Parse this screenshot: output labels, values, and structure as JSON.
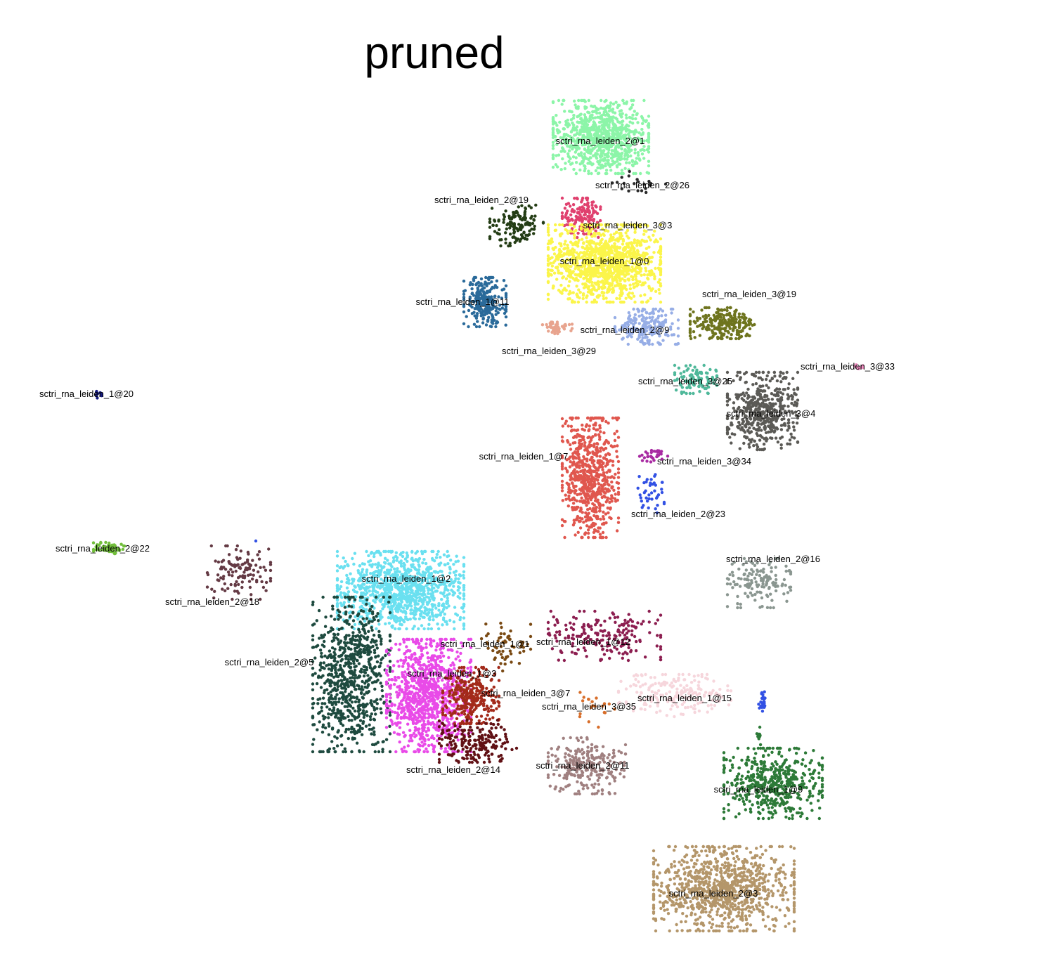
{
  "chart_data": {
    "type": "scatter",
    "title": "pruned",
    "xlabel": "",
    "ylabel": "",
    "grid": false,
    "legend": "none",
    "clusters": [
      {
        "label": "sctri_rna_leiden_2@1",
        "color": "#8cf5a8",
        "center": [
          855,
          195
        ],
        "spread": [
          68,
          52
        ],
        "n": 900
      },
      {
        "label": "sctri_rna_leiden_2@26",
        "color": "#2a2a2a",
        "center": [
          910,
          262
        ],
        "spread": [
          40,
          18
        ],
        "n": 20
      },
      {
        "label": "sctri_rna_leiden_2@19",
        "color": "#243d15",
        "center": [
          735,
          320
        ],
        "spread": [
          38,
          30
        ],
        "n": 140
      },
      {
        "label": "sctri_rna_leiden_3@3",
        "color": "#e0406e",
        "center": [
          830,
          310
        ],
        "spread": [
          30,
          28
        ],
        "n": 150
      },
      {
        "label": "sctri_rna_leiden_1@0",
        "color": "#fbf54a",
        "center": [
          860,
          375
        ],
        "spread": [
          80,
          55
        ],
        "n": 1200
      },
      {
        "label": "sctri_rna_leiden_1@11",
        "color": "#2a6a9a",
        "center": [
          690,
          430
        ],
        "spread": [
          30,
          35
        ],
        "n": 250
      },
      {
        "label": "sctri_rna_leiden_3@29",
        "color": "#e8a48e",
        "center": [
          790,
          465
        ],
        "spread": [
          24,
          10
        ],
        "n": 50
      },
      {
        "label": "sctri_rna_leiden_2@9",
        "color": "#97aee6",
        "center": [
          920,
          465
        ],
        "spread": [
          45,
          25
        ],
        "n": 200
      },
      {
        "label": "sctri_rna_leiden_3@19",
        "color": "#6e741e",
        "center": [
          1030,
          460
        ],
        "spread": [
          48,
          22
        ],
        "n": 250
      },
      {
        "label": "sctri_rna_leiden_3@33",
        "color": "#f48fc4",
        "center": [
          1222,
          522
        ],
        "spread": [
          8,
          4
        ],
        "n": 10
      },
      {
        "label": "sctri_rna_leiden_1@20",
        "color": "#141a80",
        "center": [
          140,
          560
        ],
        "spread": [
          10,
          7
        ],
        "n": 10
      },
      {
        "label": "sctri_rna_leiden_3@25",
        "color": "#4fb89a",
        "center": [
          990,
          540
        ],
        "spread": [
          30,
          20
        ],
        "n": 100
      },
      {
        "label": "sctri_rna_leiden_3@4",
        "color": "#5b5a56",
        "center": [
          1085,
          585
        ],
        "spread": [
          50,
          55
        ],
        "n": 500
      },
      {
        "label": "sctri_rna_leiden_1@7",
        "color": "#e0574e",
        "center": [
          840,
          680
        ],
        "spread": [
          40,
          85
        ],
        "n": 700
      },
      {
        "label": "sctri_rna_leiden_3@34",
        "color": "#a82aa2",
        "center": [
          930,
          648
        ],
        "spread": [
          20,
          10
        ],
        "n": 30
      },
      {
        "label": "sctri_rna_leiden_2@23",
        "color": "#3251e4",
        "center": [
          925,
          700
        ],
        "spread": [
          20,
          30
        ],
        "n": 40
      },
      {
        "label": "sctri_rna_leiden_2@22",
        "color": "#72be3c",
        "center": [
          155,
          780
        ],
        "spread": [
          22,
          8
        ],
        "n": 80
      },
      {
        "label": "sctri_rna_leiden_2@18",
        "color": "#643a44",
        "center": [
          340,
          815
        ],
        "spread": [
          45,
          38
        ],
        "n": 120
      },
      {
        "label": "sctri_rna_leiden_1@2",
        "color": "#6ae0f0",
        "center": [
          570,
          840
        ],
        "spread": [
          90,
          55
        ],
        "n": 1100
      },
      {
        "label": "sctri_rna_leiden_2@5",
        "color": "#1e4a3f",
        "center": [
          500,
          960
        ],
        "spread": [
          55,
          110
        ],
        "n": 800
      },
      {
        "label": "sctri_rna_leiden_1@1",
        "color": "#7a4a14",
        "center": [
          720,
          920
        ],
        "spread": [
          35,
          35
        ],
        "n": 60
      },
      {
        "label": "sctri_rna_leiden_1@12",
        "color": "#8c1e50",
        "center": [
          860,
          905
        ],
        "spread": [
          80,
          35
        ],
        "n": 200
      },
      {
        "label": "sctri_rna_leiden_2@16",
        "color": "#8a9690",
        "center": [
          1080,
          830
        ],
        "spread": [
          45,
          35
        ],
        "n": 150
      },
      {
        "label": "sctri_rna_leiden_1@3",
        "color": "#e94ae8",
        "center": [
          610,
          990
        ],
        "spread": [
          60,
          80
        ],
        "n": 1000
      },
      {
        "label": "sctri_rna_leiden_3@7",
        "color": "#a32a1a",
        "center": [
          670,
          990
        ],
        "spread": [
          40,
          40
        ],
        "n": 300
      },
      {
        "label": "sctri_rna_leiden_2@14",
        "color": "#601014",
        "center": [
          680,
          1055
        ],
        "spread": [
          55,
          30
        ],
        "n": 200
      },
      {
        "label": "sctri_rna_leiden_3@35",
        "color": "#d86e2a",
        "center": [
          850,
          1010
        ],
        "spread": [
          25,
          25
        ],
        "n": 20
      },
      {
        "label": "sctri_rna_leiden_1@15",
        "color": "#f6d6dc",
        "center": [
          960,
          990
        ],
        "spread": [
          80,
          30
        ],
        "n": 200
      },
      {
        "label": "sctri_rna_leiden_2@11",
        "color": "#a08080",
        "center": [
          835,
          1090
        ],
        "spread": [
          55,
          40
        ],
        "n": 250
      },
      {
        "label": "sctri_rna_leiden_1@9",
        "color": "#2d7a38",
        "center": [
          1100,
          1115
        ],
        "spread": [
          70,
          50
        ],
        "n": 500
      },
      {
        "label": "sctri_rna_leiden_2@3",
        "color": "#b4966a",
        "center": [
          1030,
          1265
        ],
        "spread": [
          100,
          60
        ],
        "n": 1000
      }
    ],
    "extra_points": [
      {
        "color": "#3251e4",
        "x": 1085,
        "y": 1000,
        "n": 25,
        "sx": 6,
        "sy": 18
      },
      {
        "color": "#2d7a38",
        "x": 1080,
        "y": 1050,
        "n": 10,
        "sx": 5,
        "sy": 15
      },
      {
        "color": "#3251e4",
        "x": 364,
        "y": 770,
        "n": 1,
        "sx": 0,
        "sy": 0
      }
    ],
    "label_positions": [
      [
        854,
        201
      ],
      [
        914,
        264
      ],
      [
        685,
        285
      ],
      [
        893,
        321
      ],
      [
        860,
        372
      ],
      [
        658,
        430
      ],
      [
        781,
        500
      ],
      [
        889,
        470
      ],
      [
        1066,
        419
      ],
      [
        1206,
        522
      ],
      [
        123,
        561
      ],
      [
        975,
        543
      ],
      [
        1097,
        589
      ],
      [
        745,
        650
      ],
      [
        1002,
        657
      ],
      [
        965,
        732
      ],
      [
        146,
        781
      ],
      [
        302,
        857
      ],
      [
        578,
        824
      ],
      [
        383,
        943
      ],
      [
        690,
        917
      ],
      [
        830,
        914
      ],
      [
        1100,
        796
      ],
      [
        643,
        959
      ],
      [
        748,
        987
      ],
      [
        645,
        1096
      ],
      [
        838,
        1006
      ],
      [
        974,
        994
      ],
      [
        829,
        1090
      ],
      [
        1079,
        1124
      ],
      [
        1015,
        1272
      ]
    ]
  }
}
